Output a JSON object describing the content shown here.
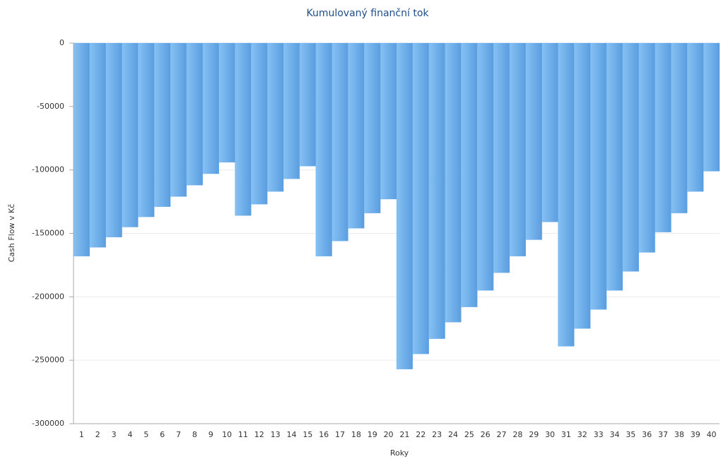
{
  "chart_data": {
    "type": "bar",
    "title": "Kumulovaný finanční tok",
    "x_label": "Roky",
    "y_label": "Cash Flow v Kč",
    "categories": [
      "1",
      "2",
      "3",
      "4",
      "5",
      "6",
      "7",
      "8",
      "9",
      "10",
      "11",
      "12",
      "13",
      "14",
      "15",
      "16",
      "17",
      "18",
      "19",
      "20",
      "21",
      "22",
      "23",
      "24",
      "25",
      "26",
      "27",
      "28",
      "29",
      "30",
      "31",
      "32",
      "33",
      "34",
      "35",
      "36",
      "37",
      "38",
      "39",
      "40"
    ],
    "values": [
      -168000,
      -161000,
      -153000,
      -145000,
      -137000,
      -129000,
      -121000,
      -112000,
      -103000,
      -94000,
      -136000,
      -127000,
      -117000,
      -107000,
      -97000,
      -168000,
      -156000,
      -146000,
      -134000,
      -123000,
      -257000,
      -245000,
      -233000,
      -220000,
      -208000,
      -195000,
      -181000,
      -168000,
      -155000,
      -141000,
      -239000,
      -225000,
      -210000,
      -195000,
      -180000,
      -165000,
      -149000,
      -134000,
      -117000,
      -101000
    ],
    "color": "#6aaeea",
    "ylim": [
      -300000,
      0
    ],
    "yticks": [
      0,
      -50000,
      -100000,
      -150000,
      -200000,
      -250000,
      -300000
    ],
    "grid": true
  }
}
